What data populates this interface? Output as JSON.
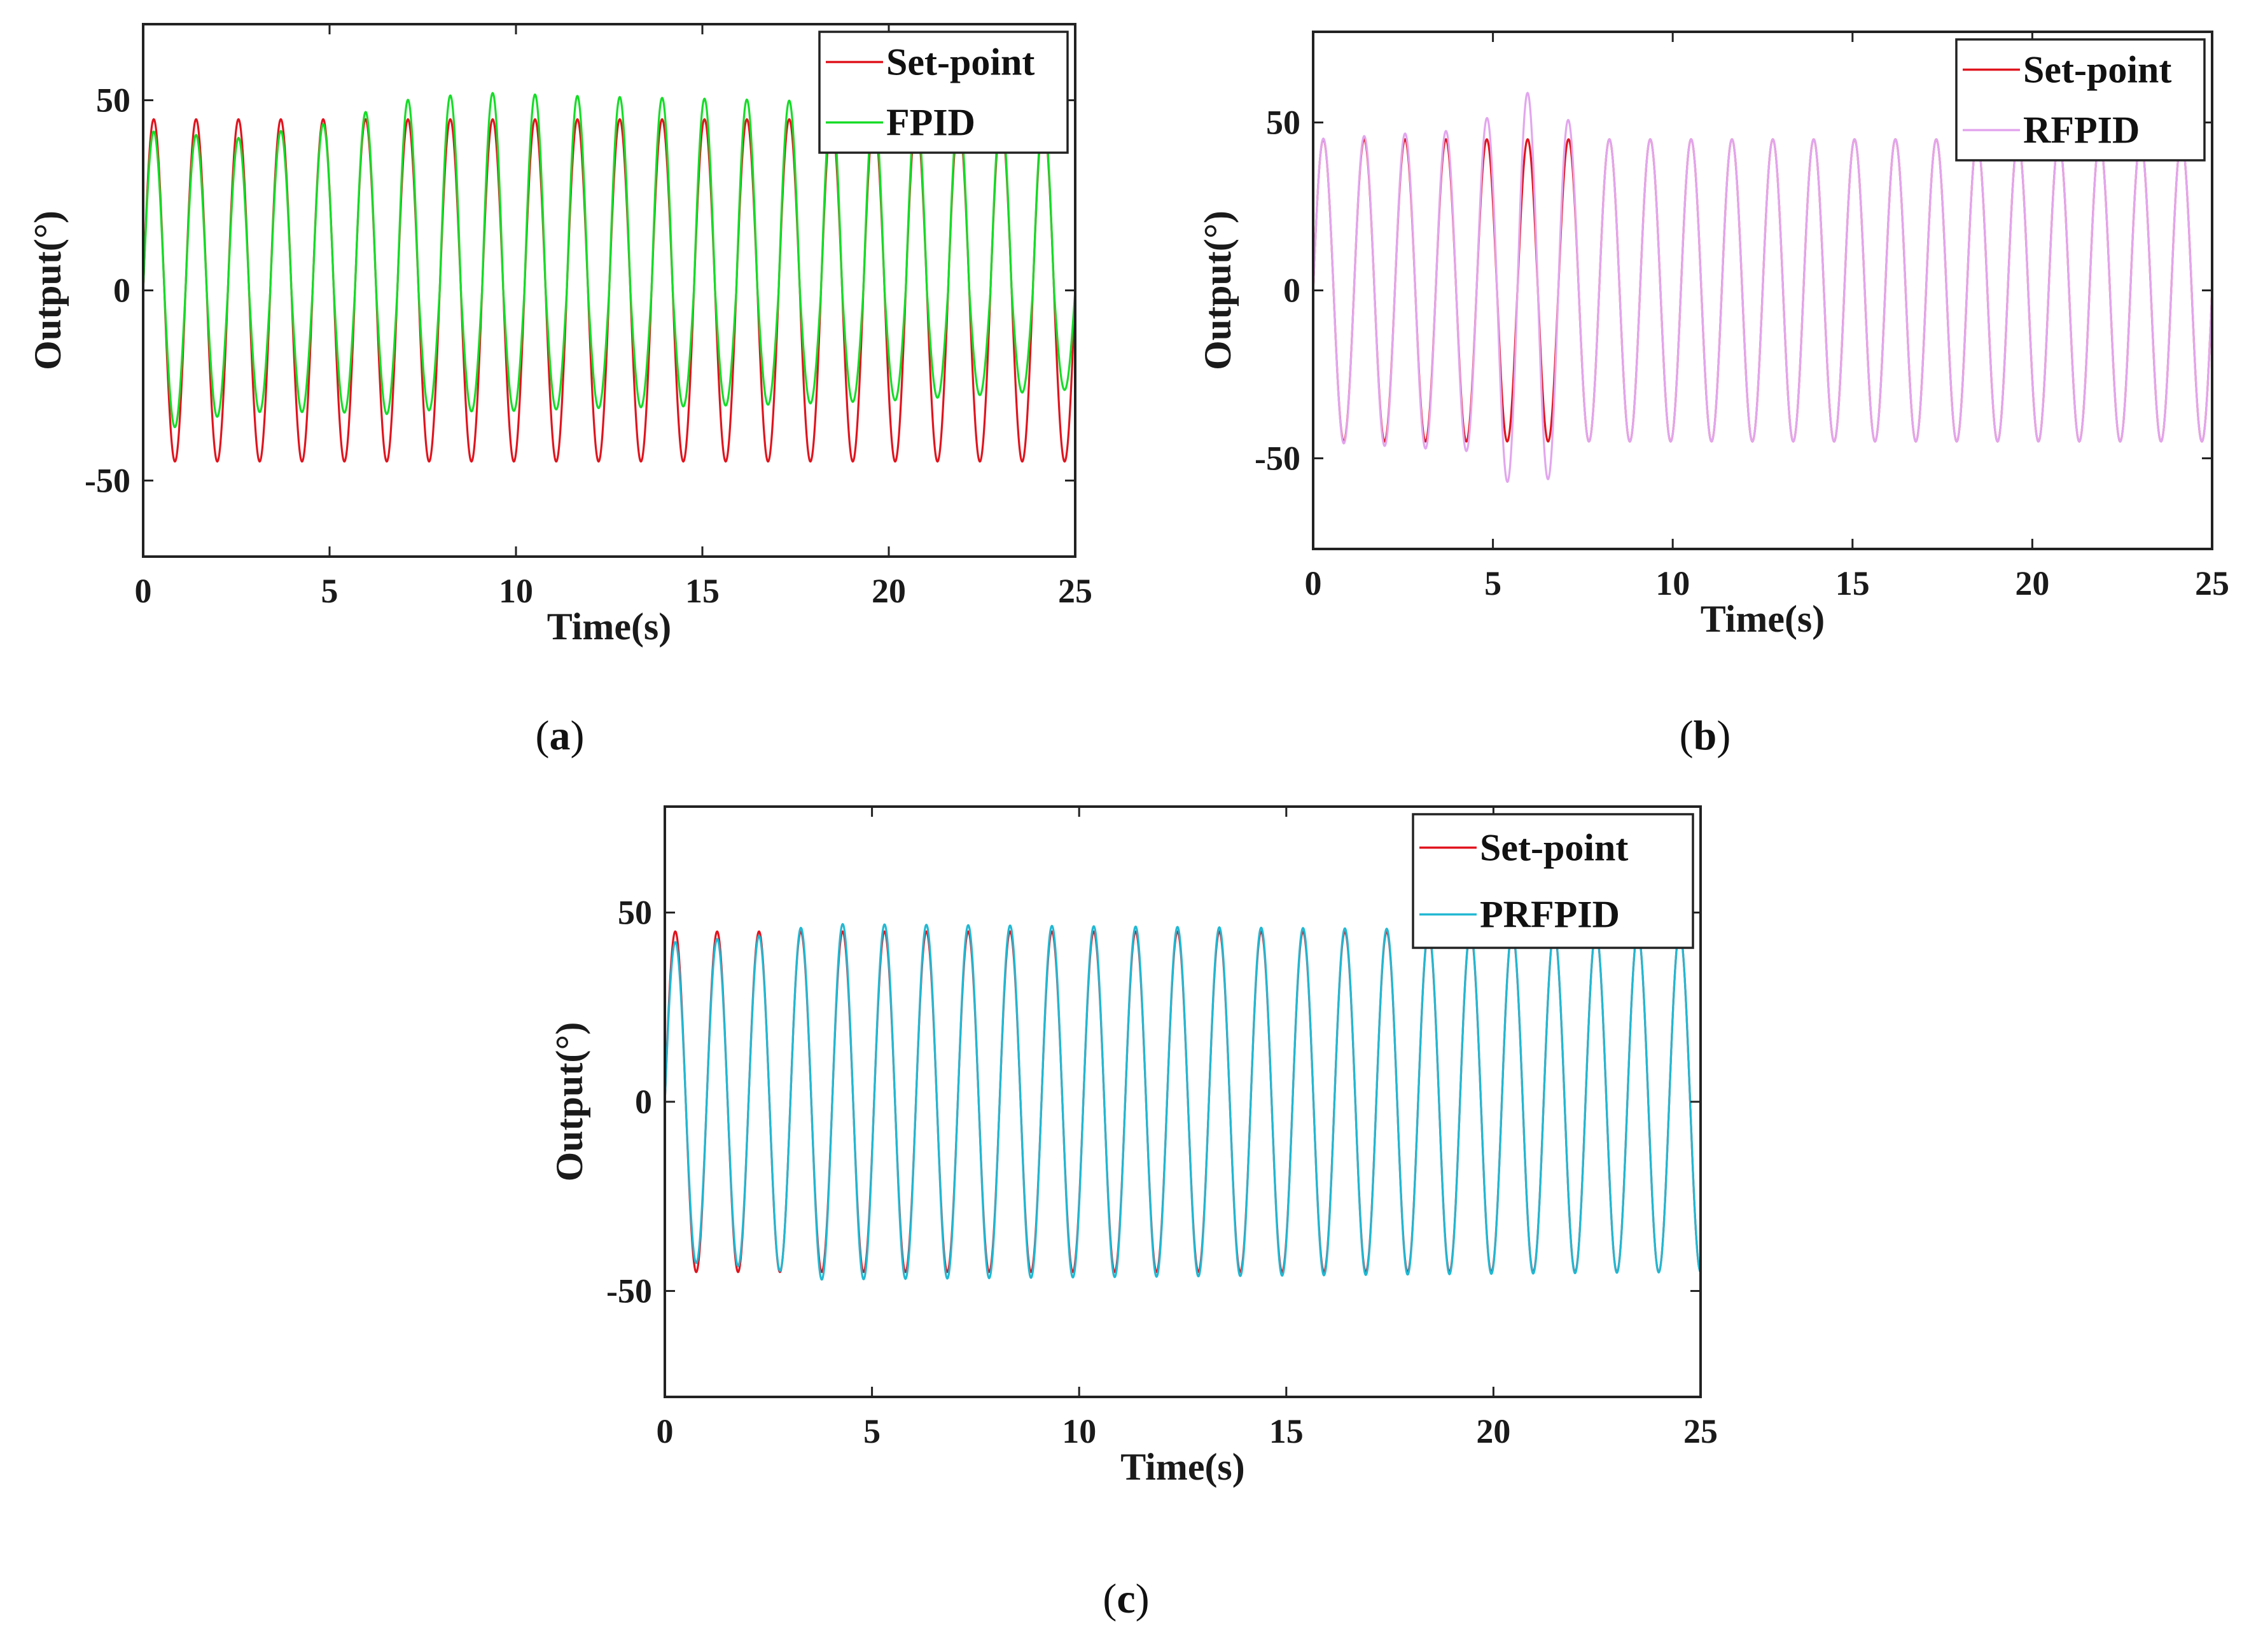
{
  "figure": {
    "panels": [
      {
        "caption_open": "(",
        "caption_letter": "a",
        "caption_close": ")"
      },
      {
        "caption_open": "(",
        "caption_letter": "b",
        "caption_close": ")"
      },
      {
        "caption_open": "(",
        "caption_letter": "c",
        "caption_close": ")"
      }
    ]
  },
  "chart_data": [
    {
      "type": "line",
      "panel": "a",
      "xlabel": "Time(s)",
      "ylabel": "Output(°)",
      "xlim": [
        0,
        25
      ],
      "ylim": [
        -70,
        70
      ],
      "xticks": [
        "0",
        "5",
        "10",
        "15",
        "20",
        "25"
      ],
      "yticks": [
        "50",
        "0",
        "-50"
      ],
      "legend_position": "top-right",
      "frequency_hz": 0.88,
      "series": [
        {
          "name": "Set-point",
          "color": "#e0141e",
          "amplitude": 45,
          "envelope": [
            [
              0,
              45
            ],
            [
              25,
              45
            ]
          ]
        },
        {
          "name": "FPID",
          "color": "#16dc28",
          "amplitude": 45,
          "envelope": [
            [
              0,
              42
            ],
            [
              2.5,
              40
            ],
            [
              5,
              44
            ],
            [
              7,
              50
            ],
            [
              9,
              52
            ],
            [
              12,
              51
            ],
            [
              17,
              50
            ],
            [
              20,
              49
            ],
            [
              25,
              46
            ]
          ],
          "bias": [
            [
              0,
              2
            ],
            [
              5,
              6
            ],
            [
              8,
              10
            ],
            [
              25,
              10
            ]
          ]
        }
      ]
    },
    {
      "type": "line",
      "panel": "b",
      "xlabel": "Time(s)",
      "ylabel": "Output(°)",
      "xlim": [
        0,
        25
      ],
      "ylim": [
        -77,
        77
      ],
      "xticks": [
        "0",
        "5",
        "10",
        "15",
        "20",
        "25"
      ],
      "yticks": [
        "50",
        "0",
        "-50"
      ],
      "legend_position": "top-right",
      "frequency_hz": 0.88,
      "series": [
        {
          "name": "Set-point",
          "color": "#e0141e",
          "amplitude": 45,
          "envelope": [
            [
              0,
              45
            ],
            [
              25,
              45
            ]
          ]
        },
        {
          "name": "RFPID",
          "color": "#e2a6ee",
          "amplitude": 45,
          "envelope": [
            [
              0,
              45
            ],
            [
              4.5,
              48
            ],
            [
              5.7,
              60
            ],
            [
              6.8,
              55
            ],
            [
              7.5,
              45
            ],
            [
              25,
              45
            ]
          ]
        }
      ]
    },
    {
      "type": "line",
      "panel": "c",
      "xlabel": "Time(s)",
      "ylabel": "Output(°)",
      "xlim": [
        0,
        25
      ],
      "ylim": [
        -78,
        78
      ],
      "xticks": [
        "0",
        "5",
        "10",
        "15",
        "20",
        "25"
      ],
      "yticks": [
        "50",
        "0",
        "-50"
      ],
      "legend_position": "top-right",
      "frequency_hz": 0.99,
      "series": [
        {
          "name": "Set-point",
          "color": "#e0141e",
          "amplitude": 45,
          "envelope": [
            [
              0,
              45
            ],
            [
              25,
              45
            ]
          ]
        },
        {
          "name": "PRFPID",
          "color": "#22b8d2",
          "amplitude": 45,
          "envelope": [
            [
              0,
              42
            ],
            [
              2.5,
              44
            ],
            [
              3.7,
              47
            ],
            [
              25,
              45
            ]
          ]
        }
      ]
    }
  ]
}
